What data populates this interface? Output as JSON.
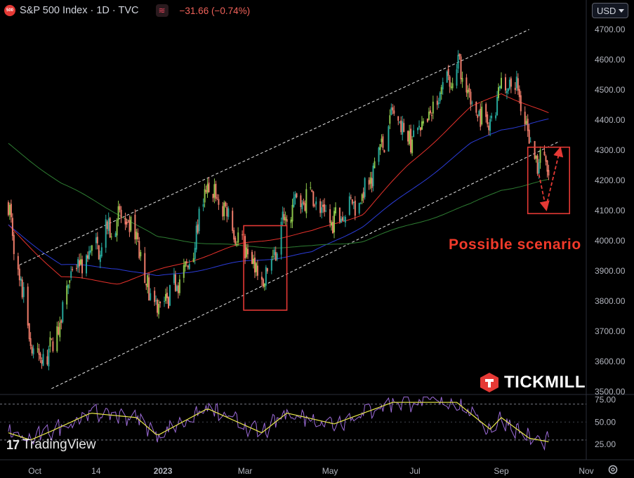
{
  "header": {
    "badge": "500",
    "symbol": "S&P 500 Index · 1D · TVC",
    "indicator_icon": "≋",
    "change": "−31.66 (−0.74%)"
  },
  "currency": "USD",
  "watermark": "TradingView",
  "brand": "TICKMILL",
  "annotation": "Possible scenario",
  "colors": {
    "up": "#26a69a",
    "up_bright": "#8bc34a",
    "down": "#ef7c6a",
    "ma_red": "#e5312b",
    "ma_blue": "#2b3cd8",
    "ma_green": "#2e7d32",
    "rsi": "#9c6bd8",
    "rsi_ma": "#e9e94a",
    "box": "#e53935"
  },
  "chart_data": {
    "type": "candlestick",
    "price_axis": {
      "min": 3500,
      "max": 4700,
      "ticks": [
        "4700.00",
        "4600.00",
        "4500.00",
        "4400.00",
        "4300.00",
        "4200.00",
        "4100.00",
        "4000.00",
        "3900.00",
        "3800.00",
        "3700.00",
        "3600.00",
        "3500.00"
      ]
    },
    "time_axis": {
      "labels": [
        "Oct",
        "14",
        "2023",
        "Mar",
        "May",
        "Jul",
        "Sep",
        "Nov"
      ]
    },
    "price_anchors": [
      [
        "2022-09-12",
        4120
      ],
      [
        "2022-09-20",
        3870
      ],
      [
        "2022-09-28",
        3680
      ],
      [
        "2022-10-03",
        3600
      ],
      [
        "2022-10-13",
        3640
      ],
      [
        "2022-10-20",
        3760
      ],
      [
        "2022-10-28",
        3900
      ],
      [
        "2022-11-10",
        3950
      ],
      [
        "2022-11-30",
        4080
      ],
      [
        "2022-12-13",
        4010
      ],
      [
        "2022-12-22",
        3820
      ],
      [
        "2022-12-28",
        3790
      ],
      [
        "2023-01-05",
        3810
      ],
      [
        "2023-01-20",
        3930
      ],
      [
        "2023-02-02",
        4180
      ],
      [
        "2023-02-15",
        4100
      ],
      [
        "2023-02-28",
        3980
      ],
      [
        "2023-03-08",
        3910
      ],
      [
        "2023-03-13",
        3850
      ],
      [
        "2023-03-22",
        3950
      ],
      [
        "2023-03-31",
        4110
      ],
      [
        "2023-04-18",
        4150
      ],
      [
        "2023-05-04",
        4060
      ],
      [
        "2023-05-25",
        4150
      ],
      [
        "2023-06-15",
        4420
      ],
      [
        "2023-06-26",
        4330
      ],
      [
        "2023-07-10",
        4400
      ],
      [
        "2023-07-31",
        4590
      ],
      [
        "2023-08-10",
        4470
      ],
      [
        "2023-08-24",
        4380
      ],
      [
        "2023-09-01",
        4510
      ],
      [
        "2023-09-14",
        4500
      ],
      [
        "2023-09-21",
        4330
      ],
      [
        "2023-09-27",
        4260
      ],
      [
        "2023-10-05",
        4240
      ]
    ],
    "moving_averages": [
      {
        "color": "red",
        "anchors": [
          [
            "2022-09-12",
            4050
          ],
          [
            "2022-10-20",
            3880
          ],
          [
            "2022-11-30",
            3860
          ],
          [
            "2022-12-28",
            3900
          ],
          [
            "2023-02-28",
            3990
          ],
          [
            "2023-04-18",
            4030
          ],
          [
            "2023-05-25",
            4090
          ],
          [
            "2023-06-26",
            4250
          ],
          [
            "2023-08-10",
            4440
          ],
          [
            "2023-09-01",
            4490
          ],
          [
            "2023-10-05",
            4420
          ]
        ]
      },
      {
        "color": "blue",
        "anchors": [
          [
            "2022-09-12",
            4050
          ],
          [
            "2022-10-20",
            3920
          ],
          [
            "2022-11-30",
            3910
          ],
          [
            "2022-12-28",
            3880
          ],
          [
            "2023-02-28",
            3930
          ],
          [
            "2023-04-18",
            3960
          ],
          [
            "2023-05-25",
            4050
          ],
          [
            "2023-06-26",
            4160
          ],
          [
            "2023-08-10",
            4320
          ],
          [
            "2023-09-01",
            4370
          ],
          [
            "2023-10-05",
            4400
          ]
        ]
      },
      {
        "color": "green",
        "anchors": [
          [
            "2022-09-12",
            4320
          ],
          [
            "2022-10-20",
            4190
          ],
          [
            "2022-11-30",
            4090
          ],
          [
            "2022-12-28",
            4010
          ],
          [
            "2023-02-28",
            3980
          ],
          [
            "2023-04-18",
            3980
          ],
          [
            "2023-05-25",
            4000
          ],
          [
            "2023-06-26",
            4050
          ],
          [
            "2023-08-10",
            4120
          ],
          [
            "2023-09-01",
            4170
          ],
          [
            "2023-10-05",
            4200
          ]
        ]
      }
    ],
    "channel": {
      "upper": [
        [
          "2022-09-20",
          3920
        ],
        [
          "2023-09-21",
          4700
        ]
      ],
      "lower": [
        [
          "2022-10-13",
          3510
        ],
        [
          "2023-10-13",
          4330
        ]
      ]
    },
    "boxes": [
      {
        "from": "2023-02-28",
        "to": "2023-03-31",
        "low": 3770,
        "high": 4050
      },
      {
        "from": "2023-09-20",
        "to": "2023-10-20",
        "low": 4090,
        "high": 4310
      }
    ],
    "scenario_arrows": [
      {
        "from": [
          "2023-09-28",
          4220
        ],
        "to": [
          "2023-10-03",
          4110
        ]
      },
      {
        "from": [
          "2023-10-03",
          4110
        ],
        "to": [
          "2023-10-13",
          4300
        ]
      }
    ],
    "rsi": {
      "range": [
        15,
        80
      ],
      "ticks": [
        "75.00",
        "50.00",
        "25.00"
      ],
      "levels": [
        70,
        30
      ],
      "anchors": [
        [
          "2022-09-12",
          38
        ],
        [
          "2022-09-28",
          30
        ],
        [
          "2022-10-13",
          40
        ],
        [
          "2022-11-10",
          60
        ],
        [
          "2022-12-13",
          55
        ],
        [
          "2022-12-28",
          35
        ],
        [
          "2023-02-02",
          65
        ],
        [
          "2023-03-13",
          38
        ],
        [
          "2023-03-31",
          60
        ],
        [
          "2023-05-04",
          48
        ],
        [
          "2023-06-15",
          72
        ],
        [
          "2023-07-31",
          72
        ],
        [
          "2023-08-24",
          42
        ],
        [
          "2023-09-01",
          55
        ],
        [
          "2023-09-21",
          32
        ],
        [
          "2023-10-05",
          28
        ]
      ]
    }
  }
}
